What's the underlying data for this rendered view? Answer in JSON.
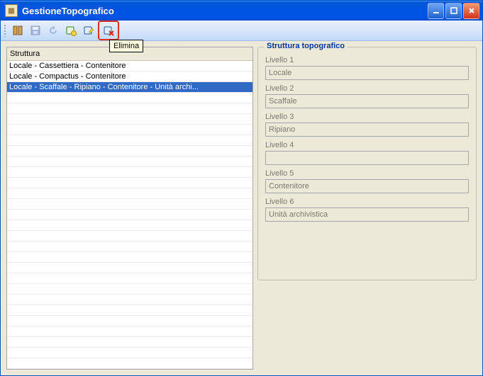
{
  "window": {
    "title": "GestioneTopografico"
  },
  "toolbar": {
    "tooltip": "Elimina"
  },
  "struttura_list": {
    "header": "Struttura",
    "items": [
      {
        "label": "Locale - Cassettiera - Contenitore",
        "selected": false
      },
      {
        "label": "Locale - Compactus - Contenitore",
        "selected": false
      },
      {
        "label": "Locale - Scaffale - Ripiano - Contenitore - Unità archi...",
        "selected": true
      }
    ]
  },
  "detail": {
    "group_title": "Struttura topografico",
    "levels": [
      {
        "label": "Livello 1",
        "value": "Locale"
      },
      {
        "label": "Livello 2",
        "value": "Scaffale"
      },
      {
        "label": "Livello 3",
        "value": "Ripiano"
      },
      {
        "label": "Livello 4",
        "value": ""
      },
      {
        "label": "Livello 5",
        "value": "Contenitore"
      },
      {
        "label": "Livello 6",
        "value": "Unità archivistica"
      }
    ]
  },
  "colors": {
    "window_bg": "#ece9d8",
    "titlebar_gradient_top": "#3f8cf3",
    "titlebar_gradient_bottom": "#0054e3",
    "selection_bg": "#316ac5",
    "selection_fg": "#ffffff",
    "group_title_color": "#003399",
    "disabled_text": "#7a7a6e",
    "tooltip_bg": "#ffffe1",
    "highlight_border": "#e03020"
  }
}
